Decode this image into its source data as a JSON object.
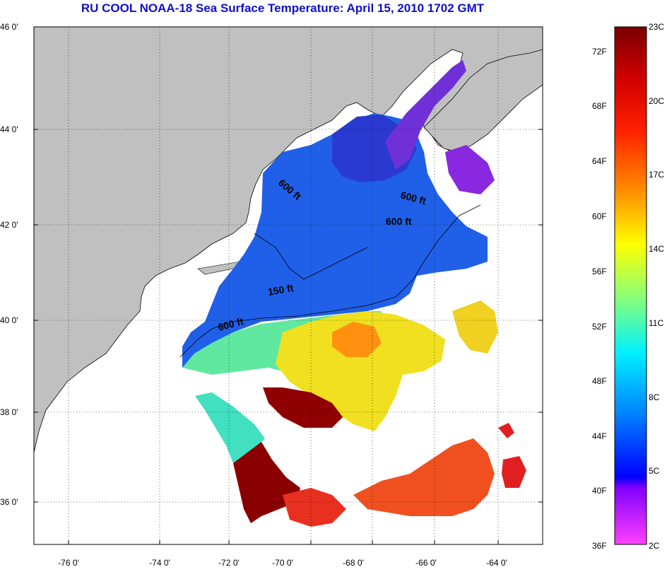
{
  "title": "RU COOL  NOAA-18  Sea Surface Temperature:  April 15, 2010 1702 GMT",
  "map": {
    "land_color": "#c0c0c0",
    "no_data_color": "#ffffff",
    "lat_labels": [
      "46 0'",
      "44 0'",
      "42 0'",
      "40 0'",
      "38 0'",
      "36 0'"
    ],
    "lon_labels": [
      "-76 0'",
      "-74 0'",
      "-72 0'",
      "-70 0'",
      "-68 0'",
      "-66 0'",
      "-64 0'"
    ],
    "contour_labels": [
      "600 ft",
      "600 ft",
      "600 ft",
      "150 ft",
      "600 ft"
    ]
  },
  "colorbar": {
    "fahrenheit_labels": [
      "72F",
      "68F",
      "64F",
      "60F",
      "56F",
      "52F",
      "48F",
      "44F",
      "40F",
      "36F"
    ],
    "celsius_labels": [
      "23C",
      "20C",
      "17C",
      "14C",
      "11C",
      "8C",
      "5C",
      "2C"
    ],
    "colors": [
      "#7a0000",
      "#ff0000",
      "#ff8000",
      "#ffff00",
      "#80ff80",
      "#00ffff",
      "#0080ff",
      "#0000ff",
      "#8000ff",
      "#ff40ff"
    ]
  }
}
